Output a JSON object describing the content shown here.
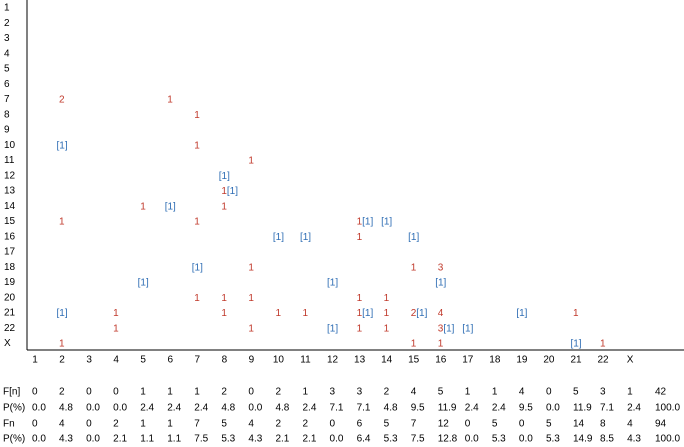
{
  "row_labels": [
    "1",
    "2",
    "3",
    "4",
    "5",
    "6",
    "7",
    "8",
    "9",
    "10",
    "11",
    "12",
    "13",
    "14",
    "15",
    "16",
    "17",
    "18",
    "19",
    "20",
    "21",
    "22",
    "X"
  ],
  "col_labels": [
    "1",
    "2",
    "3",
    "4",
    "5",
    "6",
    "7",
    "8",
    "9",
    "10",
    "11",
    "12",
    "13",
    "14",
    "15",
    "16",
    "17",
    "18",
    "19",
    "20",
    "21",
    "22",
    "X"
  ],
  "grid": [
    [
      null,
      null,
      null,
      null,
      null,
      null,
      null,
      null,
      null,
      null,
      null,
      null,
      null,
      null,
      null,
      null,
      null,
      null,
      null,
      null,
      null,
      null,
      null
    ],
    [
      null,
      null,
      null,
      null,
      null,
      null,
      null,
      null,
      null,
      null,
      null,
      null,
      null,
      null,
      null,
      null,
      null,
      null,
      null,
      null,
      null,
      null,
      null
    ],
    [
      null,
      null,
      null,
      null,
      null,
      null,
      null,
      null,
      null,
      null,
      null,
      null,
      null,
      null,
      null,
      null,
      null,
      null,
      null,
      null,
      null,
      null,
      null
    ],
    [
      null,
      null,
      null,
      null,
      null,
      null,
      null,
      null,
      null,
      null,
      null,
      null,
      null,
      null,
      null,
      null,
      null,
      null,
      null,
      null,
      null,
      null,
      null
    ],
    [
      null,
      null,
      null,
      null,
      null,
      null,
      null,
      null,
      null,
      null,
      null,
      null,
      null,
      null,
      null,
      null,
      null,
      null,
      null,
      null,
      null,
      null,
      null
    ],
    [
      null,
      null,
      null,
      null,
      null,
      null,
      null,
      null,
      null,
      null,
      null,
      null,
      null,
      null,
      null,
      null,
      null,
      null,
      null,
      null,
      null,
      null,
      null
    ],
    [
      null,
      {
        "red": "2"
      },
      null,
      null,
      null,
      {
        "red": "1"
      },
      null,
      null,
      null,
      null,
      null,
      null,
      null,
      null,
      null,
      null,
      null,
      null,
      null,
      null,
      null,
      null,
      null
    ],
    [
      null,
      null,
      null,
      null,
      null,
      null,
      {
        "red": "1"
      },
      null,
      null,
      null,
      null,
      null,
      null,
      null,
      null,
      null,
      null,
      null,
      null,
      null,
      null,
      null,
      null
    ],
    [
      null,
      null,
      null,
      null,
      null,
      null,
      null,
      null,
      null,
      null,
      null,
      null,
      null,
      null,
      null,
      null,
      null,
      null,
      null,
      null,
      null,
      null,
      null
    ],
    [
      null,
      {
        "blue": "[1]"
      },
      null,
      null,
      null,
      null,
      {
        "red": "1"
      },
      null,
      null,
      null,
      null,
      null,
      null,
      null,
      null,
      null,
      null,
      null,
      null,
      null,
      null,
      null,
      null
    ],
    [
      null,
      null,
      null,
      null,
      null,
      null,
      null,
      null,
      {
        "red": "1"
      },
      null,
      null,
      null,
      null,
      null,
      null,
      null,
      null,
      null,
      null,
      null,
      null,
      null,
      null
    ],
    [
      null,
      null,
      null,
      null,
      null,
      null,
      null,
      {
        "blue": "[1]"
      },
      null,
      null,
      null,
      null,
      null,
      null,
      null,
      null,
      null,
      null,
      null,
      null,
      null,
      null,
      null
    ],
    [
      null,
      null,
      null,
      null,
      null,
      null,
      null,
      {
        "red": "1",
        "blue": "[1]"
      },
      null,
      null,
      null,
      null,
      null,
      null,
      null,
      null,
      null,
      null,
      null,
      null,
      null,
      null,
      null
    ],
    [
      null,
      null,
      null,
      null,
      {
        "red": "1"
      },
      {
        "blue": "[1]"
      },
      null,
      {
        "red": "1"
      },
      null,
      null,
      null,
      null,
      null,
      null,
      null,
      null,
      null,
      null,
      null,
      null,
      null,
      null,
      null
    ],
    [
      null,
      {
        "red": "1"
      },
      null,
      null,
      null,
      null,
      {
        "red": "1"
      },
      null,
      null,
      null,
      null,
      null,
      {
        "red": "1",
        "blue": "[1]"
      },
      {
        "blue": "[1]"
      },
      null,
      null,
      null,
      null,
      null,
      null,
      null,
      null,
      null
    ],
    [
      null,
      null,
      null,
      null,
      null,
      null,
      null,
      null,
      null,
      {
        "blue": "[1]"
      },
      {
        "blue": "[1]"
      },
      null,
      {
        "red": "1"
      },
      null,
      {
        "blue": "[1]"
      },
      null,
      null,
      null,
      null,
      null,
      null,
      null,
      null
    ],
    [
      null,
      null,
      null,
      null,
      null,
      null,
      null,
      null,
      null,
      null,
      null,
      null,
      null,
      null,
      null,
      null,
      null,
      null,
      null,
      null,
      null,
      null,
      null
    ],
    [
      null,
      null,
      null,
      null,
      null,
      null,
      {
        "blue": "[1]"
      },
      null,
      {
        "red": "1"
      },
      null,
      null,
      null,
      null,
      null,
      {
        "red": "1"
      },
      {
        "red": "3"
      },
      null,
      null,
      null,
      null,
      null,
      null,
      null
    ],
    [
      null,
      null,
      null,
      null,
      {
        "blue": "[1]"
      },
      null,
      null,
      null,
      null,
      null,
      null,
      {
        "blue": "[1]"
      },
      null,
      null,
      null,
      {
        "blue": "[1]"
      },
      null,
      null,
      null,
      null,
      null,
      null,
      null
    ],
    [
      null,
      null,
      null,
      null,
      null,
      null,
      {
        "red": "1"
      },
      {
        "red": "1"
      },
      {
        "red": "1"
      },
      null,
      null,
      null,
      {
        "red": "1"
      },
      {
        "red": "1"
      },
      null,
      null,
      null,
      null,
      null,
      null,
      null,
      null,
      null
    ],
    [
      null,
      {
        "blue": "[1]"
      },
      null,
      {
        "red": "1"
      },
      null,
      null,
      null,
      {
        "red": "1"
      },
      null,
      {
        "red": "1"
      },
      {
        "red": "1"
      },
      null,
      {
        "red": "1",
        "blue": "[1]"
      },
      {
        "red": "1"
      },
      {
        "red": "2",
        "blue": "[1]"
      },
      {
        "red": "4"
      },
      null,
      null,
      {
        "blue": "[1]"
      },
      null,
      {
        "red": "1"
      },
      null,
      null
    ],
    [
      null,
      null,
      null,
      {
        "red": "1"
      },
      null,
      null,
      null,
      null,
      {
        "red": "1"
      },
      null,
      null,
      {
        "blue": "[1]"
      },
      {
        "red": "1"
      },
      {
        "red": "1"
      },
      null,
      {
        "red": "3",
        "blue": "[1]"
      },
      {
        "blue": "[1]"
      },
      null,
      null,
      null,
      null,
      null,
      null
    ],
    [
      null,
      {
        "red": "1"
      },
      null,
      null,
      null,
      null,
      null,
      null,
      null,
      null,
      null,
      null,
      null,
      null,
      {
        "red": "1"
      },
      {
        "red": "1"
      },
      null,
      null,
      null,
      null,
      {
        "blue": "[1]"
      },
      {
        "red": "1"
      },
      null
    ]
  ],
  "footer": [
    {
      "label": "F[n]",
      "values": [
        "0",
        "2",
        "0",
        "0",
        "1",
        "1",
        "1",
        "2",
        "0",
        "2",
        "1",
        "3",
        "3",
        "2",
        "4",
        "5",
        "1",
        "1",
        "4",
        "0",
        "5",
        "3",
        "1",
        "42"
      ]
    },
    {
      "label": "P(%)",
      "values": [
        "0.0",
        "4.8",
        "0.0",
        "0.0",
        "2.4",
        "2.4",
        "2.4",
        "4.8",
        "0.0",
        "4.8",
        "2.4",
        "7.1",
        "7.1",
        "4.8",
        "9.5",
        "11.9",
        "2.4",
        "2.4",
        "9.5",
        "0.0",
        "11.9",
        "7.1",
        "2.4",
        "100.0"
      ]
    },
    {
      "label": "Fn",
      "values": [
        "0",
        "4",
        "0",
        "2",
        "1",
        "1",
        "7",
        "5",
        "4",
        "2",
        "2",
        "0",
        "6",
        "5",
        "7",
        "12",
        "0",
        "5",
        "0",
        "5",
        "14",
        "8",
        "4",
        "94"
      ]
    },
    {
      "label": "P(%)",
      "values": [
        "0.0",
        "4.3",
        "0.0",
        "2.1",
        "1.1",
        "1.1",
        "7.5",
        "5.3",
        "4.3",
        "2.1",
        "2.1",
        "0.0",
        "6.4",
        "5.3",
        "7.5",
        "12.8",
        "0.0",
        "5.3",
        "0.0",
        "5.3",
        "14.9",
        "8.5",
        "4.3",
        "100.0"
      ]
    }
  ]
}
